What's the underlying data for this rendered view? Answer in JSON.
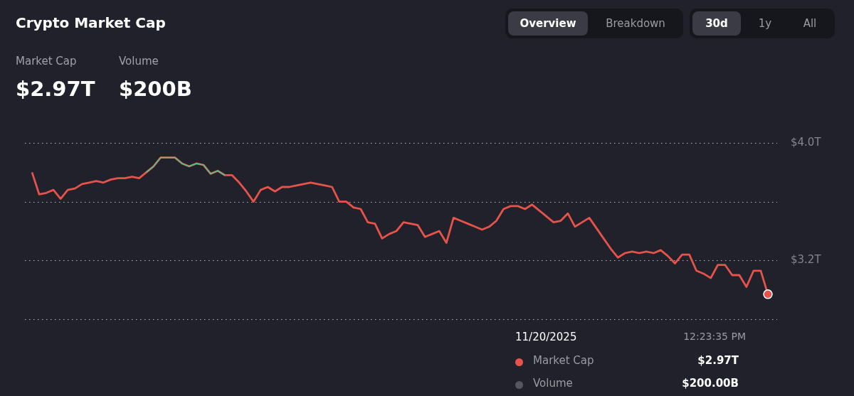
{
  "chart_data": {
    "type": "line",
    "title": "Crypto Market Cap",
    "tick_labels": "y",
    "grid": "y",
    "legend": false,
    "ylim": [
      2.8,
      4.0
    ],
    "yticks": [
      {
        "value": 4.0,
        "label": "$4.0T"
      },
      {
        "value": 3.6,
        "label": null
      },
      {
        "value": 3.2,
        "label": "$3.2T"
      },
      {
        "value": 2.8,
        "label": null
      }
    ],
    "annotations": [
      "Market Cap",
      "$2.97T",
      "Volume",
      "$200B",
      "Overview",
      "Breakdown",
      "30d",
      "1y",
      "All",
      "11/20/2025",
      "12:23:35 PM",
      "Market Cap",
      "$2.97T",
      "Volume",
      "$200.00B"
    ],
    "categories": [
      null,
      null,
      null,
      null,
      null,
      null,
      null,
      null,
      null,
      null,
      null,
      null,
      null,
      null,
      null,
      null,
      null,
      null,
      null,
      null,
      null,
      null,
      null,
      null,
      null,
      null,
      null,
      null,
      null,
      null,
      null,
      null,
      null,
      null,
      null,
      null,
      null,
      null,
      null,
      null,
      null,
      null,
      null,
      null,
      null,
      null,
      null,
      null,
      null,
      null,
      null,
      null,
      null,
      null,
      null,
      null,
      null,
      null,
      null,
      null,
      null,
      null,
      null,
      null,
      null,
      null,
      null,
      null,
      null,
      null,
      null,
      null,
      null,
      null,
      null,
      null,
      null,
      null,
      null,
      null,
      null,
      null,
      null,
      null,
      null,
      null,
      null,
      null,
      null,
      null,
      null,
      null,
      null,
      null,
      null,
      null,
      null,
      null,
      null,
      null,
      null,
      null,
      null,
      null
    ],
    "series": [
      {
        "color": "#e5534b",
        "values": [
          3.8,
          3.65,
          3.66,
          3.68,
          3.62,
          3.68,
          3.69,
          3.72,
          3.73,
          3.74,
          3.73,
          3.75,
          3.76,
          3.76,
          3.77,
          3.76,
          3.8,
          3.84,
          3.9,
          3.9,
          3.9,
          3.86,
          3.84,
          3.86,
          3.85,
          3.79,
          3.81,
          3.78,
          3.78,
          3.73,
          3.67,
          3.6,
          3.68,
          3.7,
          3.67,
          3.7,
          3.7,
          3.71,
          3.72,
          3.73,
          3.72,
          3.71,
          3.7,
          3.6,
          3.6,
          3.56,
          3.55,
          3.46,
          3.45,
          3.35,
          3.38,
          3.4,
          3.46,
          3.45,
          3.44,
          3.36,
          3.38,
          3.4,
          3.32,
          3.49,
          3.47,
          3.45,
          3.43,
          3.41,
          3.43,
          3.47,
          3.55,
          3.57,
          3.57,
          3.55,
          3.58,
          3.54,
          3.5,
          3.46,
          3.47,
          3.52,
          3.43,
          3.46,
          3.49,
          3.42,
          3.35,
          3.28,
          3.22,
          3.25,
          3.26,
          3.25,
          3.26,
          3.25,
          3.27,
          3.23,
          3.18,
          3.24,
          3.24,
          3.13,
          3.11,
          3.08,
          3.17,
          3.17,
          3.1,
          3.1,
          3.02,
          3.13,
          3.13,
          2.97
        ]
      },
      {
        "color": "#4fc38a",
        "values": [
          null,
          null,
          null,
          null,
          null,
          null,
          null,
          null,
          null,
          null,
          null,
          null,
          null,
          null,
          null,
          null,
          3.8,
          3.84,
          3.9,
          3.9,
          3.9,
          3.86,
          3.84,
          3.86,
          3.85,
          3.79,
          3.81,
          3.78,
          null,
          null,
          null,
          null,
          null,
          null,
          null,
          null,
          null,
          null,
          null,
          null,
          null,
          null,
          null,
          null,
          null,
          null,
          null,
          null,
          null,
          null,
          null,
          null,
          null,
          null,
          null,
          null,
          null,
          null,
          null,
          null,
          null,
          null,
          null,
          null,
          null,
          null,
          null,
          null,
          null,
          null,
          null,
          null,
          null,
          null,
          null,
          null,
          null,
          null,
          null,
          null,
          null,
          null,
          null,
          null,
          null,
          null,
          null,
          null,
          null,
          null,
          null,
          null,
          null,
          null,
          null,
          null,
          null,
          null,
          null,
          null,
          null,
          null,
          null,
          null
        ]
      }
    ]
  }
}
